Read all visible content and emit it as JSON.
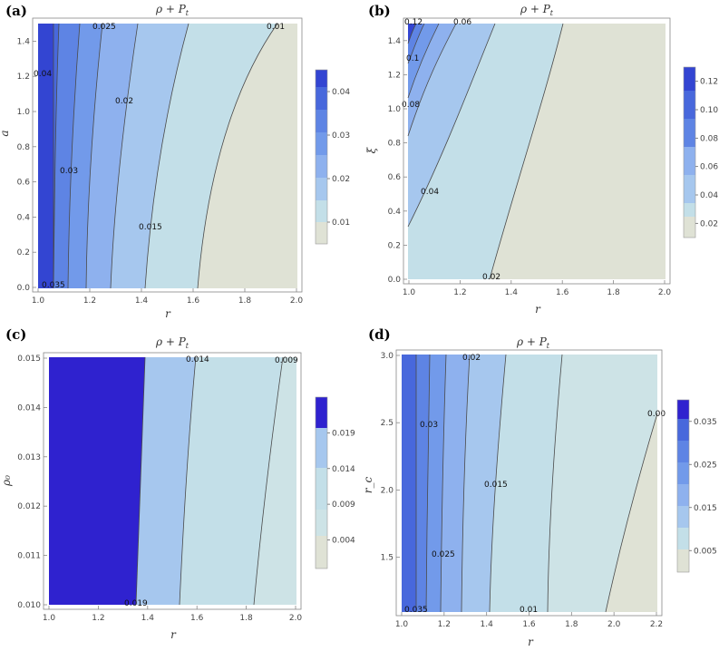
{
  "chart_data": [
    {
      "type": "contour",
      "panel_label": "(a)",
      "title": "ρ + P_t",
      "title_main": "ρ + P",
      "title_sub": "t",
      "xlabel": "r",
      "ylabel": "a",
      "xlim": [
        1.0,
        2.0
      ],
      "ylim": [
        0.0,
        1.5
      ],
      "xticks": [
        "1.0",
        "1.2",
        "1.4",
        "1.6",
        "1.8",
        "2.0"
      ],
      "yticks": [
        "0.0",
        "0.2",
        "0.4",
        "0.6",
        "0.8",
        "1.0",
        "1.2",
        "1.4"
      ],
      "contour_levels": [
        0.01,
        0.015,
        0.02,
        0.025,
        0.03,
        0.035,
        0.04
      ],
      "contour_labels": [
        "0.04",
        "0.03",
        "0.035",
        "0.025",
        "0.02",
        "0.015",
        "0.01"
      ],
      "legend_ticks": [
        "0.04",
        "0.03",
        "0.02",
        "0.01"
      ],
      "legend_range": [
        0.005,
        0.045
      ]
    },
    {
      "type": "contour",
      "panel_label": "(b)",
      "title": "ρ + P_t",
      "title_main": "ρ + P",
      "title_sub": "t",
      "xlabel": "r",
      "ylabel": "ξ",
      "xlim": [
        1.0,
        2.0
      ],
      "ylim": [
        0.0,
        1.5
      ],
      "xticks": [
        "1.0",
        "1.2",
        "1.4",
        "1.6",
        "1.8",
        "2.0"
      ],
      "yticks": [
        "0.0",
        "0.2",
        "0.4",
        "0.6",
        "0.8",
        "1.0",
        "1.2",
        "1.4"
      ],
      "contour_levels": [
        0.02,
        0.04,
        0.06,
        0.08,
        0.1,
        0.12
      ],
      "contour_labels": [
        "0.12",
        "0.1",
        "0.08",
        "0.06",
        "0.04",
        "0.02"
      ],
      "legend_ticks": [
        "0.12",
        "0.10",
        "0.08",
        "0.06",
        "0.04",
        "0.02"
      ],
      "legend_range": [
        0.01,
        0.13
      ]
    },
    {
      "type": "contour",
      "panel_label": "(c)",
      "title": "ρ + P_t",
      "title_main": "ρ + P",
      "title_sub": "t",
      "xlabel": "r",
      "ylabel": "ρ₀",
      "xlim": [
        1.0,
        2.0
      ],
      "ylim": [
        0.01,
        0.015
      ],
      "xticks": [
        "1.0",
        "1.2",
        "1.4",
        "1.6",
        "1.8",
        "2.0"
      ],
      "yticks": [
        "0.010",
        "0.011",
        "0.012",
        "0.013",
        "0.014",
        "0.015"
      ],
      "contour_levels": [
        0.004,
        0.009,
        0.014,
        0.019
      ],
      "contour_labels": [
        "0.019",
        "0.014",
        "0.009"
      ],
      "legend_ticks": [
        "0.019",
        "0.014",
        "0.009",
        "0.004"
      ],
      "legend_range": [
        0.0,
        0.024
      ]
    },
    {
      "type": "contour",
      "panel_label": "(d)",
      "title": "ρ + P_t",
      "title_main": "ρ + P",
      "title_sub": "t",
      "xlabel": "r",
      "ylabel": "r_c",
      "xlim": [
        1.0,
        2.2
      ],
      "ylim": [
        1.1,
        3.0
      ],
      "xticks": [
        "1.0",
        "1.2",
        "1.4",
        "1.6",
        "1.8",
        "2.0",
        "2.2"
      ],
      "yticks": [
        "1.5",
        "2.0",
        "2.5",
        "3.0"
      ],
      "contour_levels": [
        0.005,
        0.01,
        0.015,
        0.02,
        0.025,
        0.03,
        0.035
      ],
      "contour_labels": [
        "0.02",
        "0.00",
        "0.03",
        "0.015",
        "0.025",
        "0.035",
        "0.01"
      ],
      "legend_ticks": [
        "0.035",
        "0.025",
        "0.015",
        "0.005"
      ],
      "legend_range": [
        0.0,
        0.04
      ]
    }
  ]
}
